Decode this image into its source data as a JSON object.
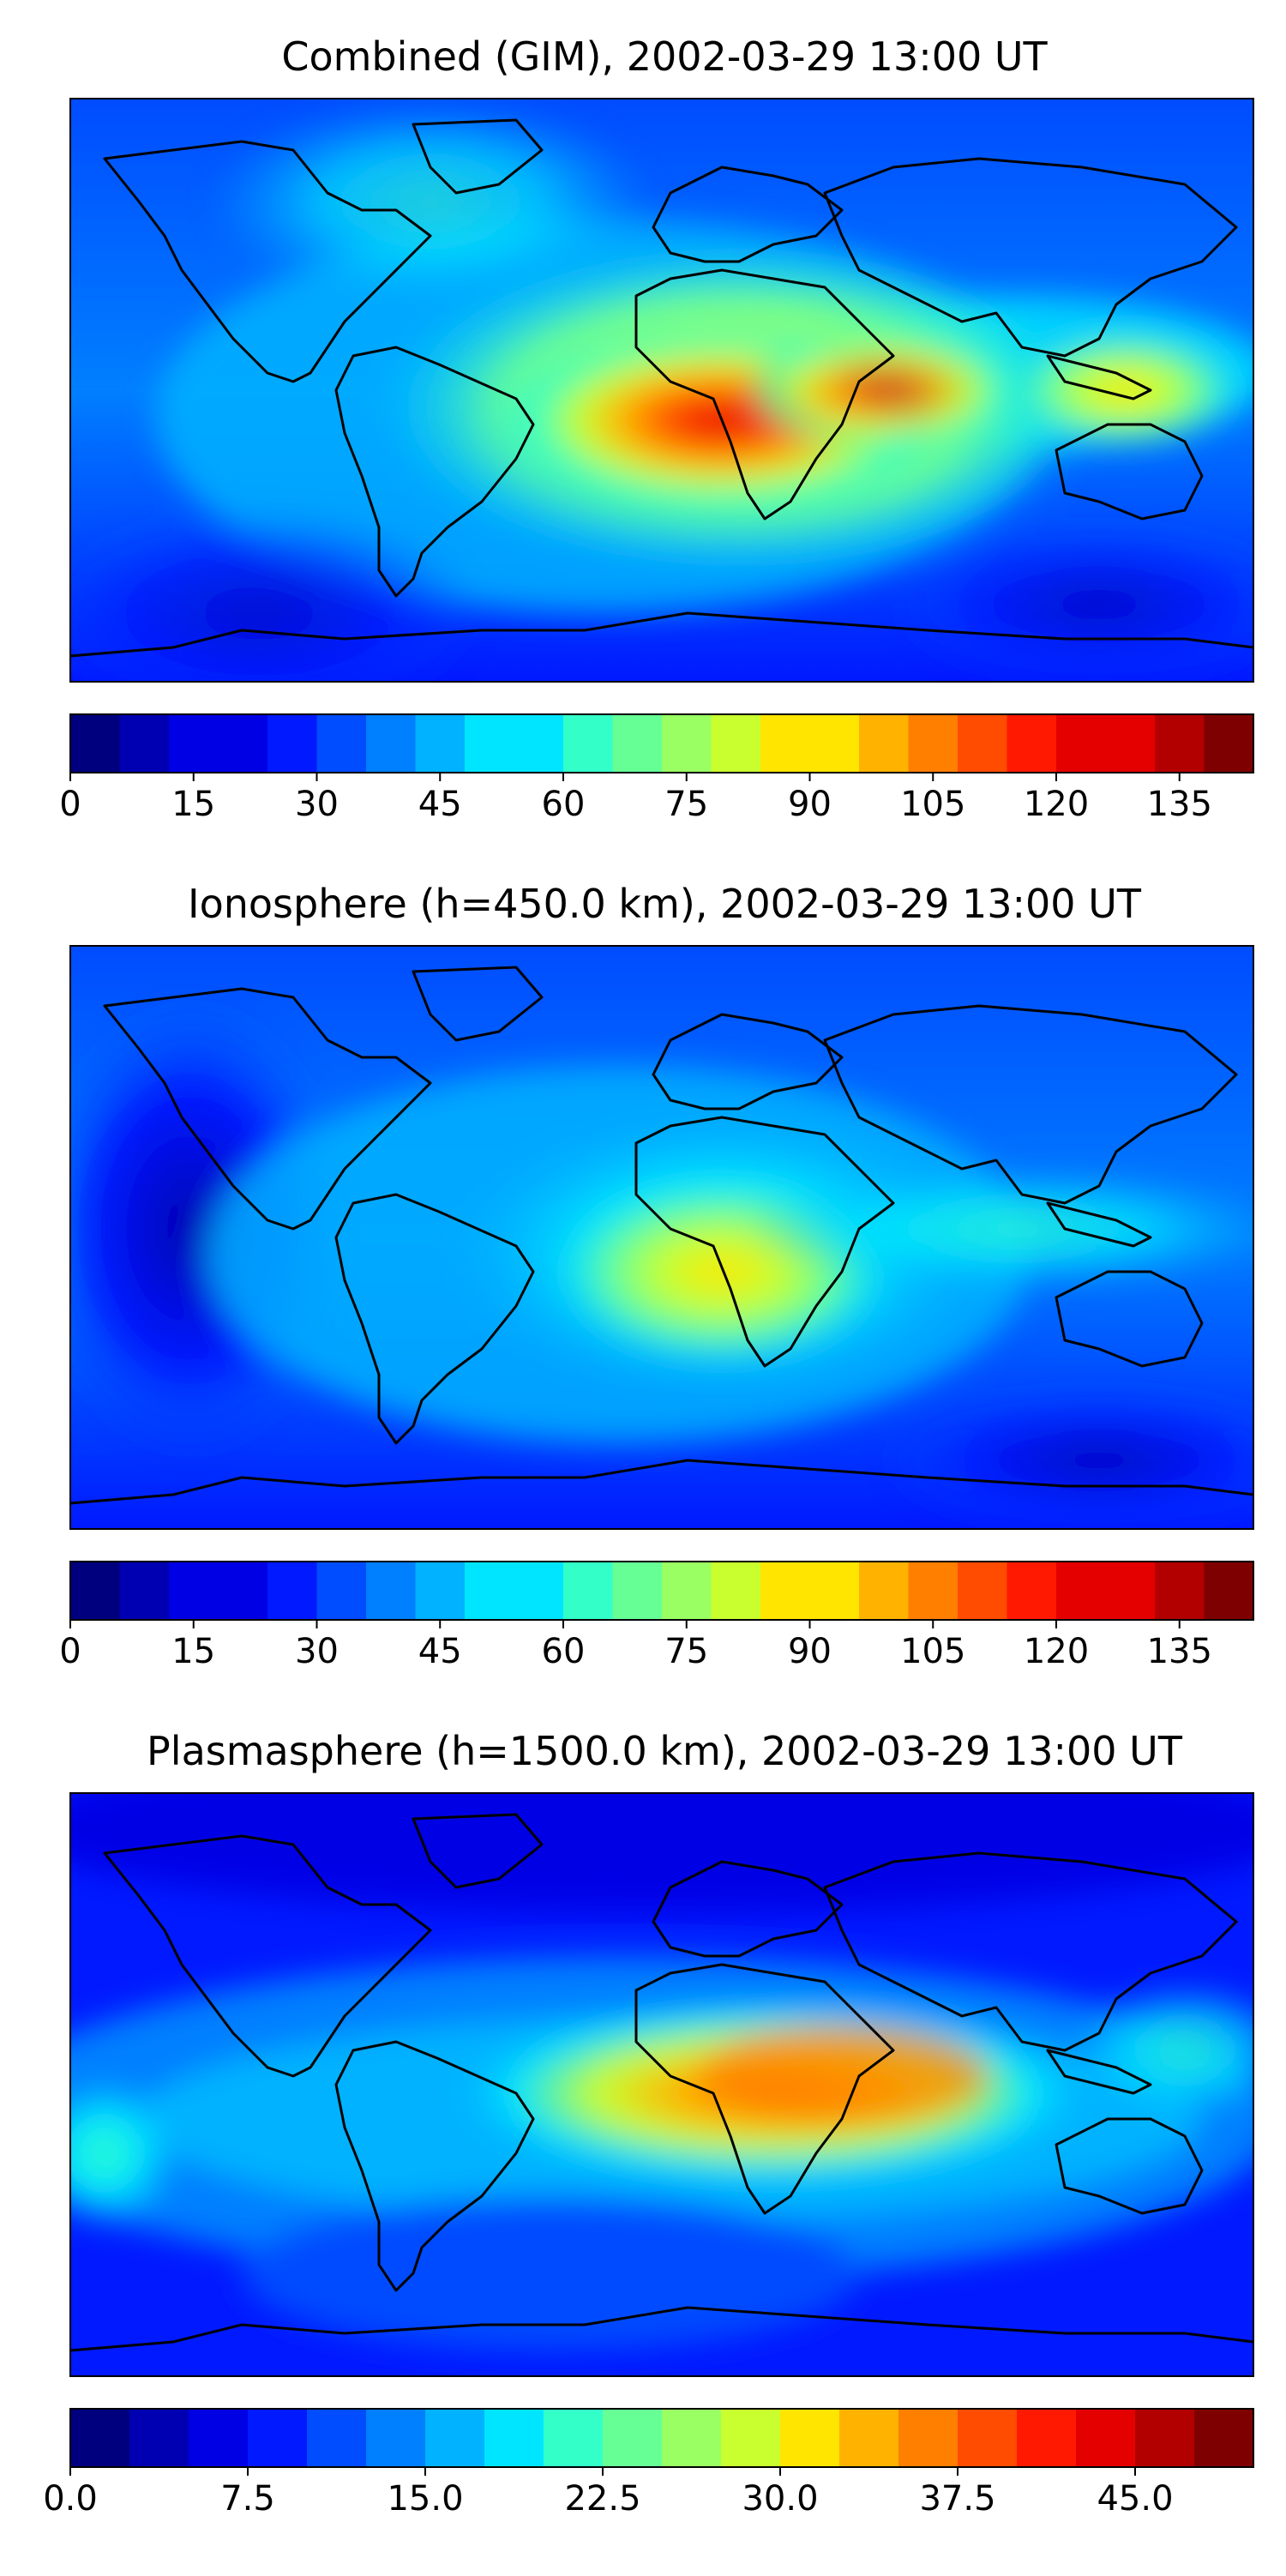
{
  "colors": {
    "jet": [
      "#00007f",
      "#0000b2",
      "#0000e5",
      "#0019ff",
      "#004cff",
      "#007fff",
      "#00b2ff",
      "#00e5ff",
      "#33ffc9",
      "#66ff96",
      "#99ff63",
      "#c9ff2f",
      "#ffe500",
      "#ffb200",
      "#ff7f00",
      "#ff4c00",
      "#ff1900",
      "#e50000",
      "#b20000",
      "#7f0000"
    ],
    "coast": "#000000",
    "frame": "#000000"
  },
  "panels": [
    {
      "title": "Combined (GIM), 2002-03-29 13:00 UT",
      "colorbar": {
        "min": 0,
        "max": 144,
        "levels": 24,
        "ticks": [
          0,
          15,
          30,
          45,
          60,
          75,
          90,
          105,
          120,
          135
        ],
        "tick_labels": [
          "0",
          "15",
          "30",
          "45",
          "60",
          "75",
          "90",
          "105",
          "120",
          "135"
        ]
      }
    },
    {
      "title": "Ionosphere  (h=450.0 km), 2002-03-29 13:00 UT",
      "colorbar": {
        "min": 0,
        "max": 144,
        "levels": 24,
        "ticks": [
          0,
          15,
          30,
          45,
          60,
          75,
          90,
          105,
          120,
          135
        ],
        "tick_labels": [
          "0",
          "15",
          "30",
          "45",
          "60",
          "75",
          "90",
          "105",
          "120",
          "135"
        ]
      }
    },
    {
      "title": "Plasmasphere (h=1500.0 km), 2002-03-29 13:00 UT",
      "colorbar": {
        "min": 0,
        "max": 50,
        "levels": 20,
        "ticks": [
          0,
          7.5,
          15,
          22.5,
          30,
          37.5,
          45
        ],
        "tick_labels": [
          "0.0",
          "7.5",
          "15.0",
          "22.5",
          "30.0",
          "37.5",
          "45.0"
        ]
      }
    }
  ]
}
